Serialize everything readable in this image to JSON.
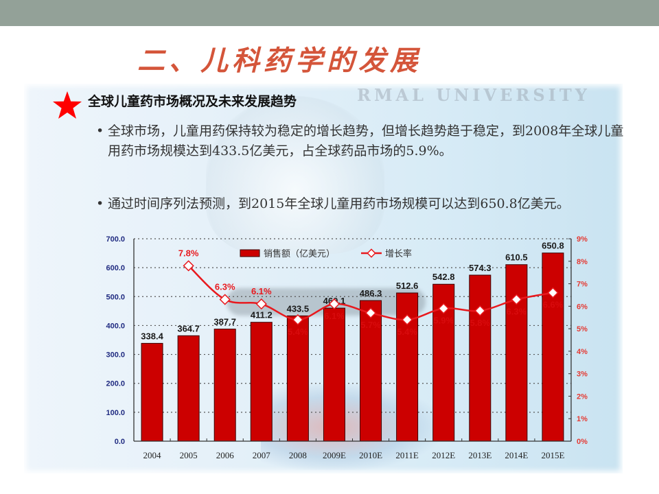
{
  "slide": {
    "title": "二、儿科药学的发展",
    "watermark": "RMAL UNIVERSITY",
    "section_heading": "全球儿童药市场概况及未来发展趋势",
    "bullets": [
      {
        "text": "全球市场，儿童用药保持较为稳定的增长趋势，但增长趋势趋于稳定，到2008年全球儿童用药市场规模达到433.5亿美元，占全球药品市场的5.9%。"
      },
      {
        "text": "通过时间序列法预测，到2015年全球儿童用药市场规模可以达到650.8亿美元。"
      }
    ],
    "bullet_symbol": "•",
    "star_icon": "red-star-icon"
  },
  "colors": {
    "top_bar": "#93a198",
    "title": "#d4553a",
    "bar_fill": "#cc0000",
    "line": "#e8191e",
    "left_axis_labels": "#1f2a80",
    "right_axis_labels": "#e53a33",
    "star": "#ff0000"
  },
  "chart_data": {
    "type": "bar+line",
    "title": "",
    "categories": [
      "2004",
      "2005",
      "2006",
      "2007",
      "2008",
      "2009E",
      "2010E",
      "2011E",
      "2012E",
      "2013E",
      "2014E",
      "2015E"
    ],
    "series": [
      {
        "name": "销售额（亿美元）",
        "type": "bar",
        "axis": "left",
        "values": [
          338.4,
          364.7,
          387.7,
          411.2,
          433.5,
          460.1,
          486.3,
          512.6,
          542.8,
          574.3,
          610.5,
          650.8
        ],
        "labels": [
          "338.4",
          "364.7",
          "387.7",
          "411.2",
          "433.5",
          "460.1",
          "486.3",
          "512.6",
          "542.8",
          "574.3",
          "610.5",
          "650.8"
        ]
      },
      {
        "name": "增长率",
        "type": "line",
        "axis": "right",
        "values": [
          null,
          7.8,
          6.3,
          6.1,
          5.4,
          6.1,
          5.7,
          5.4,
          5.9,
          5.8,
          6.3,
          6.6
        ],
        "labels": [
          "",
          "7.8%",
          "6.3%",
          "6.1%",
          "5.4%",
          "6.1%",
          "5.7%",
          "5.4%",
          "5.9%",
          "5.8%",
          "6.3%",
          "6.6%"
        ]
      }
    ],
    "left_axis": {
      "ylim": [
        0,
        700
      ],
      "ticks": [
        "0.0",
        "100.0",
        "200.0",
        "300.0",
        "400.0",
        "500.0",
        "600.0",
        "700.0"
      ]
    },
    "right_axis": {
      "ylim": [
        0,
        9
      ],
      "ticks": [
        "0%",
        "1%",
        "2%",
        "3%",
        "4%",
        "5%",
        "6%",
        "7%",
        "8%",
        "9%"
      ]
    },
    "xlabel": "",
    "ylabel": "",
    "grid": "horizontal dotted",
    "legend": {
      "position": "top-center",
      "items": [
        "销售额（亿美元）",
        "增长率"
      ]
    }
  }
}
